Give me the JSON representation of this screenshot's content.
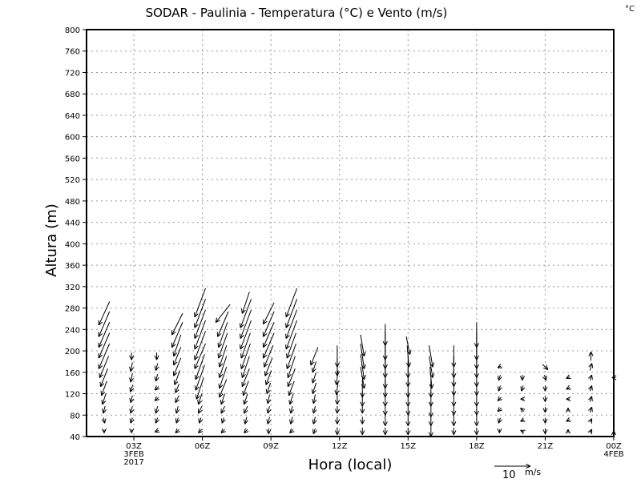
{
  "chart_data": {
    "type": "vector",
    "title": "SODAR  -  Paulinia  -  Temperatura (°C) e Vento (m/s)",
    "corner_label": "°C",
    "ylabel": "Altura (m)",
    "xlabel": "Hora (local)",
    "ylim": [
      40,
      800
    ],
    "yticks": [
      40,
      80,
      120,
      160,
      200,
      240,
      280,
      320,
      360,
      400,
      440,
      480,
      520,
      560,
      600,
      640,
      680,
      720,
      760,
      800
    ],
    "xlim_hours": [
      0.93,
      24
    ],
    "xticks": [
      {
        "hour": 3,
        "label": "03Z",
        "sub1": "3FEB",
        "sub2": "2017"
      },
      {
        "hour": 6,
        "label": "06Z"
      },
      {
        "hour": 9,
        "label": "09Z"
      },
      {
        "hour": 12,
        "label": "12Z"
      },
      {
        "hour": 15,
        "label": "15Z"
      },
      {
        "hour": 18,
        "label": "18Z"
      },
      {
        "hour": 21,
        "label": "21Z"
      },
      {
        "hour": 24,
        "label": "00Z",
        "sub1": "4FEB"
      }
    ],
    "grid": true,
    "legend": {
      "value": "10",
      "unit": "m/s",
      "speed": 10
    },
    "levels": [
      50,
      70,
      90,
      110,
      130,
      150,
      170,
      190,
      210,
      230,
      250,
      270,
      290
    ],
    "columns": [
      {
        "hour": 1.7,
        "uv": [
          [
            0,
            -1
          ],
          [
            0.3,
            -1.5
          ],
          [
            -0.5,
            -2
          ],
          [
            -1,
            -3
          ],
          [
            -1.5,
            -4
          ],
          [
            -2,
            -5
          ],
          [
            -2.5,
            -6
          ],
          [
            -3,
            -7
          ],
          [
            -3,
            -7
          ],
          [
            -3,
            -7
          ],
          [
            -3,
            -7
          ],
          [
            -3,
            -6.5
          ],
          null
        ]
      },
      {
        "hour": 2.9,
        "uv": [
          [
            0,
            -1
          ],
          [
            -0.5,
            -1.5
          ],
          [
            -0.5,
            -2
          ],
          [
            -0.5,
            -2
          ],
          [
            -0.7,
            -2
          ],
          [
            -0.5,
            -2.5
          ],
          [
            -0.5,
            -2.5
          ],
          [
            0,
            -2
          ],
          null,
          null,
          null,
          null,
          null
        ]
      },
      {
        "hour": 4.0,
        "uv": [
          [
            -1,
            -0.5
          ],
          [
            -0.5,
            -1.5
          ],
          [
            -0.5,
            -2
          ],
          [
            -1,
            -1
          ],
          [
            -1,
            -1
          ],
          [
            -0.5,
            -2
          ],
          [
            -0.5,
            -2
          ],
          [
            0,
            -2
          ],
          null,
          null,
          null,
          null,
          null
        ]
      },
      {
        "hour": 4.9,
        "uv": [
          [
            -1,
            -1
          ],
          [
            -0.5,
            -1.5
          ],
          [
            -0.5,
            -2
          ],
          [
            -1,
            -2
          ],
          [
            -1,
            -2.5
          ],
          [
            -1.5,
            -4
          ],
          [
            -2,
            -5
          ],
          [
            -2,
            -5
          ],
          [
            -2,
            -6
          ],
          [
            -3,
            -7
          ],
          [
            -3,
            -6
          ],
          null,
          null
        ]
      },
      {
        "hour": 5.9,
        "uv": [
          [
            -1,
            -1
          ],
          [
            -0.5,
            -1.5
          ],
          [
            -1,
            -2
          ],
          [
            -1,
            -3
          ],
          [
            -2,
            -6
          ],
          [
            -2.5,
            -7
          ],
          [
            -2.5,
            -7
          ],
          [
            -3,
            -7
          ],
          [
            -3,
            -8
          ],
          [
            -3,
            -8
          ],
          [
            -3,
            -8
          ],
          [
            -3,
            -8
          ],
          [
            -3,
            -8
          ]
        ]
      },
      {
        "hour": 6.9,
        "uv": [
          [
            -1,
            -1
          ],
          [
            -0.5,
            -1.5
          ],
          [
            -1,
            -2
          ],
          [
            -1,
            -3
          ],
          [
            -2,
            -5
          ],
          [
            -2,
            -6
          ],
          [
            -2,
            -6
          ],
          [
            -2,
            -6
          ],
          [
            -2.5,
            -7
          ],
          [
            -2.5,
            -7
          ],
          [
            -3,
            -7
          ],
          [
            -4,
            -5
          ],
          null
        ]
      },
      {
        "hour": 7.9,
        "uv": [
          [
            -1,
            -1
          ],
          [
            -0.5,
            -2
          ],
          [
            -1,
            -2
          ],
          [
            -1,
            -3
          ],
          [
            -1.5,
            -4
          ],
          [
            -2,
            -5
          ],
          [
            -2,
            -6
          ],
          [
            -2.5,
            -7
          ],
          [
            -2.5,
            -7
          ],
          [
            -3,
            -8
          ],
          [
            -3,
            -8
          ],
          [
            -3,
            -8
          ],
          [
            -2,
            -6
          ]
        ]
      },
      {
        "hour": 8.9,
        "uv": [
          [
            0,
            -1.5
          ],
          [
            -0.5,
            -2
          ],
          [
            -0.5,
            -2
          ],
          [
            -0.5,
            -2.5
          ],
          [
            -1,
            -3
          ],
          [
            -1.5,
            -4
          ],
          [
            -2,
            -5
          ],
          [
            -2.5,
            -6
          ],
          [
            -3,
            -7
          ],
          [
            -3,
            -7
          ],
          [
            -3,
            -7
          ],
          [
            -3,
            -6
          ],
          null
        ]
      },
      {
        "hour": 9.9,
        "uv": [
          [
            -1,
            -1
          ],
          [
            -0.5,
            -2
          ],
          [
            -0.5,
            -2
          ],
          [
            -1,
            -3
          ],
          [
            -1.5,
            -4
          ],
          [
            -2,
            -5
          ],
          [
            -2,
            -6
          ],
          [
            -2.5,
            -7
          ],
          [
            -2.5,
            -7
          ],
          [
            -3,
            -8
          ],
          [
            -3,
            -8
          ],
          [
            -3,
            -8
          ],
          [
            -3,
            -8
          ]
        ]
      },
      {
        "hour": 10.9,
        "uv": [
          [
            -0.5,
            -1.5
          ],
          [
            -0.5,
            -2
          ],
          [
            -0.5,
            -2
          ],
          [
            -0.5,
            -2.5
          ],
          [
            -1,
            -3
          ],
          [
            -1,
            -3
          ],
          [
            -1,
            -3
          ],
          [
            -2,
            -5
          ],
          null,
          null,
          null,
          null,
          null
        ]
      },
      {
        "hour": 11.9,
        "uv": [
          [
            0,
            -2
          ],
          [
            0,
            -2
          ],
          [
            0,
            -2
          ],
          [
            0,
            -3
          ],
          [
            -0.5,
            -3.5
          ],
          [
            -0.5,
            -4
          ],
          [
            0,
            -5
          ],
          [
            0,
            -6
          ],
          null,
          null,
          null,
          null,
          null
        ]
      },
      {
        "hour": 13.0,
        "uv": [
          [
            0,
            -2
          ],
          [
            0,
            -2
          ],
          [
            0,
            -2
          ],
          [
            0,
            -4
          ],
          [
            0,
            -5
          ],
          [
            1,
            -6
          ],
          [
            1,
            -7
          ],
          [
            1,
            -7
          ],
          [
            1,
            -6
          ],
          null,
          null,
          null,
          null
        ]
      },
      {
        "hour": 14.0,
        "uv": [
          [
            0,
            -2
          ],
          [
            0,
            -3
          ],
          [
            0,
            -3
          ],
          [
            0,
            -4
          ],
          [
            0,
            -5
          ],
          [
            0,
            -6
          ],
          [
            0,
            -6
          ],
          [
            0,
            -7
          ],
          [
            0,
            -8
          ],
          [
            0,
            -6
          ],
          null,
          null,
          null
        ]
      },
      {
        "hour": 15.0,
        "uv": [
          [
            0,
            -2
          ],
          [
            0,
            -3
          ],
          [
            0,
            -3
          ],
          [
            0,
            -4
          ],
          [
            0,
            -5
          ],
          [
            0,
            -5
          ],
          [
            0,
            -6
          ],
          [
            0.5,
            -6
          ],
          [
            1,
            -5
          ],
          null,
          null,
          null,
          null
        ]
      },
      {
        "hour": 16.0,
        "uv": [
          [
            0,
            -3
          ],
          [
            0,
            -3
          ],
          [
            0,
            -4
          ],
          [
            0,
            -4
          ],
          [
            0,
            -5
          ],
          [
            0.5,
            -6
          ],
          [
            1,
            -6
          ],
          [
            1,
            -6
          ],
          null,
          null,
          null,
          null,
          null
        ]
      },
      {
        "hour": 17.0,
        "uv": [
          [
            0,
            -2
          ],
          [
            0,
            -3
          ],
          [
            0,
            -3
          ],
          [
            0,
            -4
          ],
          [
            0,
            -4
          ],
          [
            0,
            -5
          ],
          [
            0,
            -6
          ],
          [
            0,
            -6
          ],
          null,
          null,
          null,
          null,
          null
        ]
      },
      {
        "hour": 18.0,
        "uv": [
          [
            0,
            -2
          ],
          [
            0,
            -3
          ],
          [
            0,
            -3
          ],
          [
            0,
            -4
          ],
          [
            0,
            -4
          ],
          [
            0,
            -5
          ],
          [
            0,
            -6
          ],
          [
            0,
            -7
          ],
          [
            0,
            -8
          ],
          [
            0,
            -7
          ],
          null,
          null,
          null
        ]
      },
      {
        "hour": 19.0,
        "uv": [
          [
            0,
            -1
          ],
          [
            -0.5,
            -1.5
          ],
          [
            -1,
            -1
          ],
          [
            -1,
            -1
          ],
          [
            -0.5,
            -1.5
          ],
          [
            -0.5,
            -1.5
          ],
          [
            -1,
            -0.5
          ],
          null,
          null,
          null,
          null,
          null,
          null
        ]
      },
      {
        "hour": 20.0,
        "uv": [
          [
            -1,
            0.5
          ],
          [
            -1,
            -0.5
          ],
          [
            -1,
            1
          ],
          [
            -1,
            0
          ],
          [
            -0.5,
            -1.5
          ],
          [
            0,
            -1.5
          ],
          null,
          null,
          null,
          null,
          null,
          null,
          null
        ]
      },
      {
        "hour": 21.0,
        "uv": [
          [
            0,
            -1.5
          ],
          [
            0,
            -1.5
          ],
          [
            0,
            -1.5
          ],
          [
            0,
            -1.5
          ],
          [
            0,
            -1.5
          ],
          [
            0.5,
            -1.5
          ],
          [
            1.5,
            -1.5
          ],
          null,
          null,
          null,
          null,
          null,
          null
        ]
      },
      {
        "hour": 22.0,
        "uv": [
          [
            0,
            1
          ],
          [
            -1,
            -0.5
          ],
          [
            0,
            1
          ],
          [
            -1,
            0
          ],
          [
            -1,
            -0.5
          ],
          [
            -1,
            -0.5
          ],
          null,
          null,
          null,
          null,
          null,
          null,
          null
        ]
      },
      {
        "hour": 23.0,
        "uv": [
          [
            0.5,
            1
          ],
          [
            0.5,
            1
          ],
          [
            0.5,
            1.5
          ],
          [
            0.5,
            1.5
          ],
          [
            0.5,
            1.5
          ],
          [
            0.5,
            1.5
          ],
          [
            0.5,
            2
          ],
          [
            0,
            2.5
          ],
          null,
          null,
          null,
          null,
          null
        ]
      },
      {
        "hour": 24.0,
        "uv": [
          [
            0,
            0.3
          ],
          null,
          null,
          null,
          null,
          [
            -1,
            0
          ],
          null,
          null,
          null,
          null,
          null,
          null,
          null
        ]
      }
    ]
  }
}
